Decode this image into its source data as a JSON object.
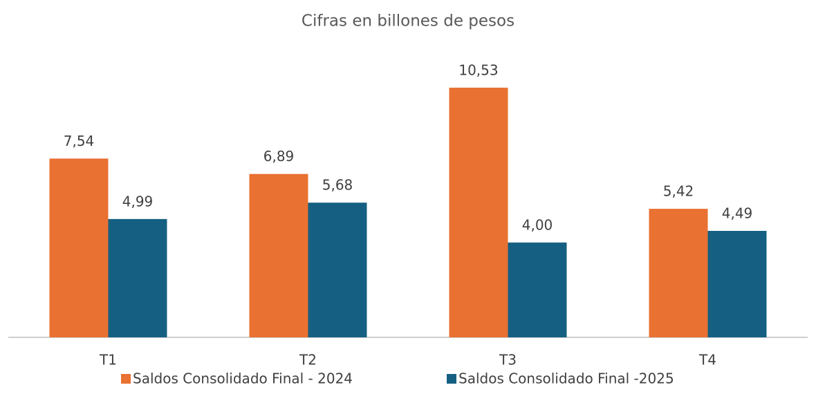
{
  "chart_data": {
    "type": "bar",
    "title": "Cifras en billones de pesos",
    "categories": [
      "T1",
      "T2",
      "T3",
      "T4"
    ],
    "series": [
      {
        "name": "Saldos Consolidado Final - 2024",
        "color": "#e97132",
        "values": [
          7.54,
          6.89,
          10.53,
          5.42
        ],
        "value_labels": [
          "7,54",
          "6,89",
          "10,53",
          "5,42"
        ]
      },
      {
        "name": "Saldos Consolidado Final -2025",
        "color": "#156082",
        "values": [
          4.99,
          5.68,
          4.0,
          4.49
        ],
        "value_labels": [
          "4,99",
          "5,68",
          "4,00",
          "4,49"
        ]
      }
    ],
    "legend": "bottom"
  }
}
